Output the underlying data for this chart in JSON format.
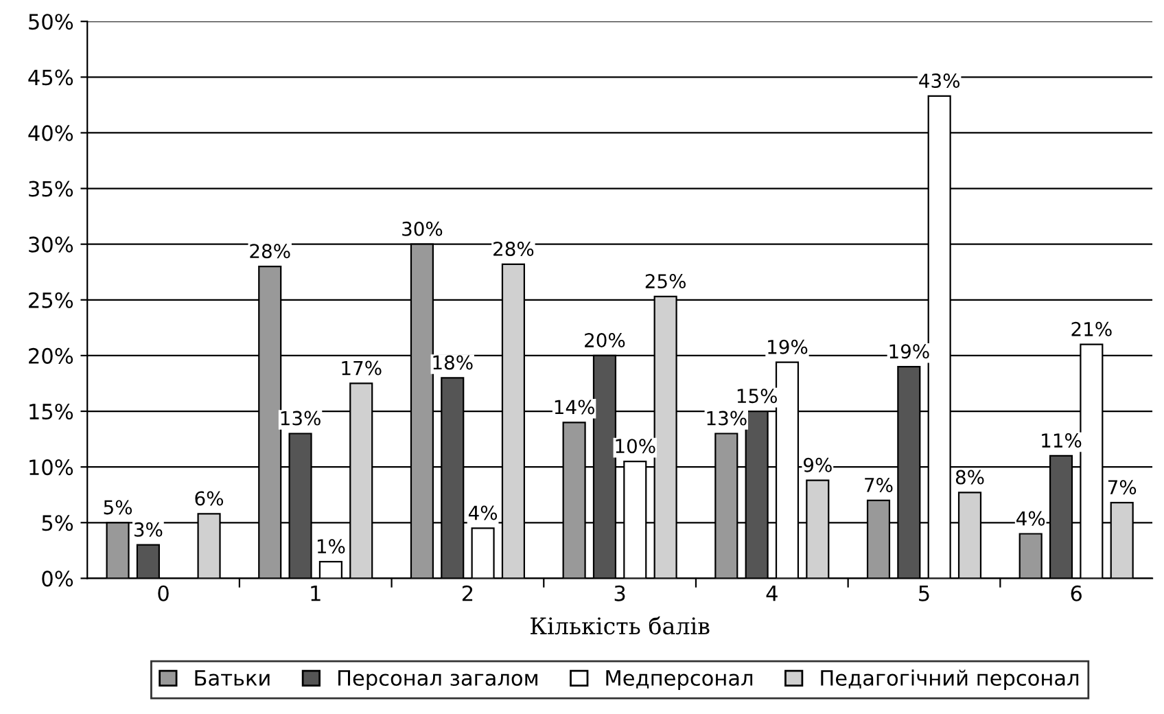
{
  "chart_data": {
    "type": "bar",
    "xlabel": "Кількість балів",
    "categories": [
      "0",
      "1",
      "2",
      "3",
      "4",
      "5",
      "6"
    ],
    "series": [
      {
        "name": "Батьки",
        "color": "#999999",
        "values": [
          5,
          28,
          30,
          14,
          13,
          7,
          4
        ],
        "value_labels": [
          "5%",
          "28%",
          "30%",
          "14%",
          "13%",
          "7%",
          "4%"
        ]
      },
      {
        "name": "Персонал загалом",
        "color": "#555555",
        "values": [
          3,
          13,
          18,
          20,
          15,
          19,
          11
        ],
        "value_labels": [
          "3%",
          "13%",
          "18%",
          "20%",
          "15%",
          "19%",
          "11%"
        ]
      },
      {
        "name": "Медперсонал",
        "color": "#ffffff",
        "values": [
          null,
          1.5,
          4.5,
          10.5,
          19.4,
          43.3,
          21
        ],
        "value_labels": [
          null,
          "1%",
          "4%",
          "10%",
          "19%",
          "43%",
          "21%"
        ]
      },
      {
        "name": "Педагогічний персонал",
        "color": "#d0d0d0",
        "values": [
          5.8,
          17.5,
          28.2,
          25.3,
          8.8,
          7.7,
          6.8
        ],
        "value_labels": [
          "6%",
          "17%",
          "28%",
          "25%",
          "9%",
          "8%",
          "7%"
        ]
      }
    ],
    "ylim": [
      0,
      50
    ],
    "yticks": [
      {
        "value": 0,
        "label": "0%"
      },
      {
        "value": 5,
        "label": "5%"
      },
      {
        "value": 10,
        "label": "10%"
      },
      {
        "value": 15,
        "label": "15%"
      },
      {
        "value": 20,
        "label": "20%"
      },
      {
        "value": 25,
        "label": "25%"
      },
      {
        "value": 30,
        "label": "30%"
      },
      {
        "value": 35,
        "label": "35%"
      },
      {
        "value": 40,
        "label": "40%"
      },
      {
        "value": 45,
        "label": "45%"
      },
      {
        "value": 50,
        "label": "50%"
      }
    ],
    "grid": "y",
    "legend": "bottom"
  }
}
